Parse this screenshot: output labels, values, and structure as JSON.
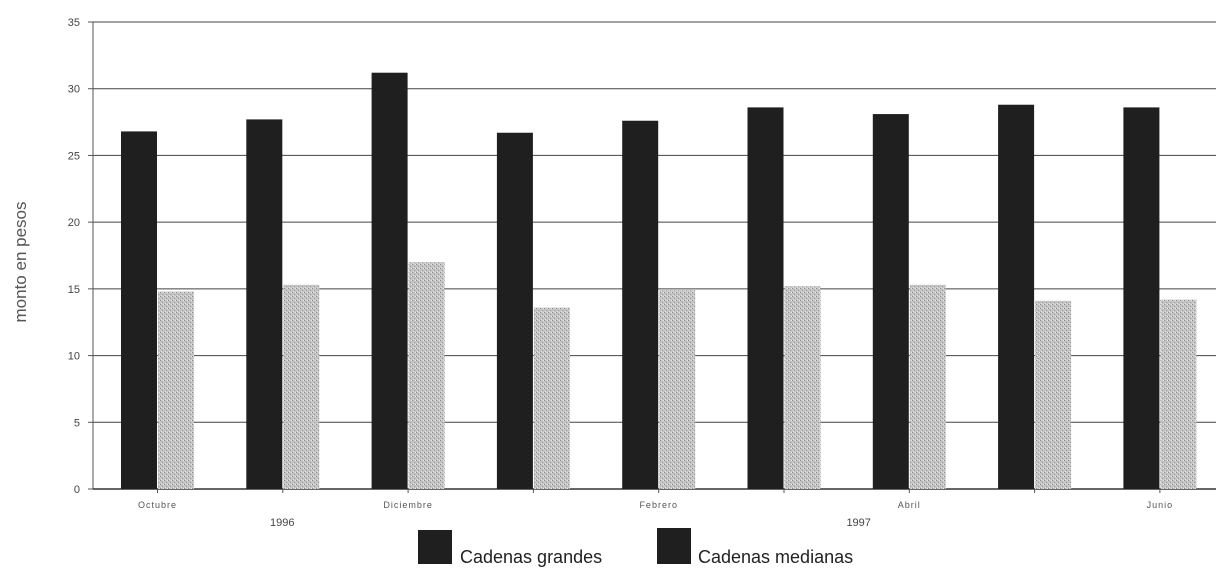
{
  "chart_data": {
    "type": "bar",
    "ylabel": "monto en pesos",
    "ylim": [
      0,
      35
    ],
    "yticks": [
      0,
      5,
      10,
      15,
      20,
      25,
      30,
      35
    ],
    "grid": true,
    "categories": [
      "Octubre",
      "",
      "Diciembre",
      "",
      "Febrero",
      "",
      "Abril",
      "",
      "Junio"
    ],
    "year_labels": [
      {
        "text": "1996",
        "at_category": 1
      },
      {
        "text": "1997",
        "at_category": 5.6
      }
    ],
    "series": [
      {
        "name": "Cadenas grandes",
        "color": "#1f1f1f",
        "values": [
          26.8,
          27.7,
          31.2,
          26.7,
          27.6,
          28.6,
          28.1,
          28.8,
          28.6
        ]
      },
      {
        "name": "Cadenas medianas",
        "color": "#b9b9b9",
        "values": [
          14.8,
          15.3,
          17.0,
          13.6,
          14.9,
          15.2,
          15.3,
          14.1,
          14.2
        ]
      }
    ],
    "legend_position": "bottom-center"
  }
}
